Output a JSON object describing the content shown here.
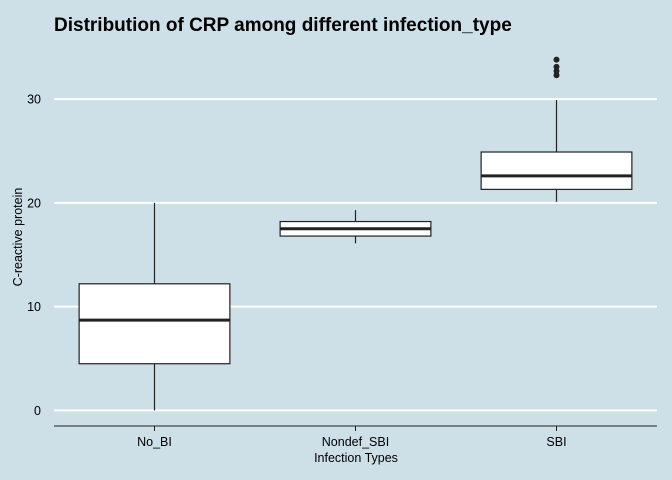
{
  "chart_data": {
    "type": "boxplot",
    "title": "Distribution of CRP among different infection_type",
    "xlabel": "Infection Types",
    "ylabel": "C-reactive protein",
    "ylim": [
      -1.5,
      35.5
    ],
    "yticks": [
      0,
      10,
      20,
      30
    ],
    "grid": "horizontal",
    "background": "#cddfe7",
    "grid_color": "#ffffff",
    "box_fill": "#ffffff",
    "line_color": "#222222",
    "categories": [
      "No_BI",
      "Nondef_SBI",
      "SBI"
    ],
    "boxes": [
      {
        "category": "No_BI",
        "min": 0,
        "q1": 4.5,
        "median": 8.7,
        "q3": 12.2,
        "max": 20.0,
        "outliers": []
      },
      {
        "category": "Nondef_SBI",
        "min": 16.1,
        "q1": 16.8,
        "median": 17.5,
        "q3": 18.2,
        "max": 19.3,
        "outliers": []
      },
      {
        "category": "SBI",
        "min": 20.1,
        "q1": 21.3,
        "median": 22.6,
        "q3": 24.9,
        "max": 29.9,
        "outliers": [
          32.3,
          32.7,
          33.1,
          33.8
        ]
      }
    ]
  }
}
